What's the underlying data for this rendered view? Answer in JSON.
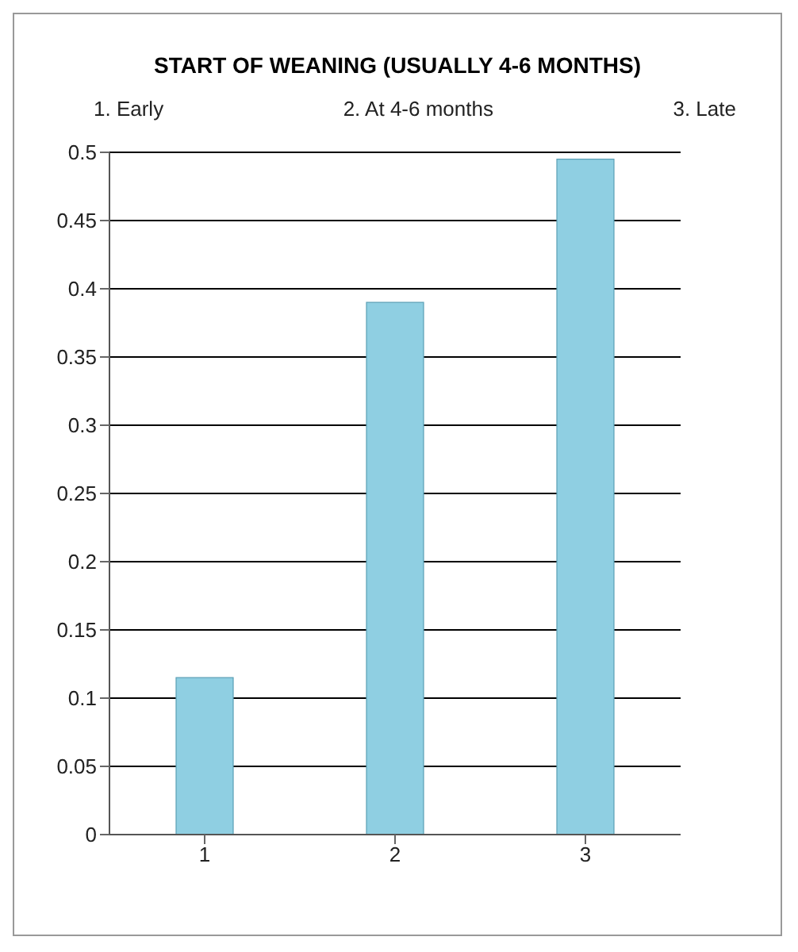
{
  "chart_data": {
    "type": "bar",
    "title": "START OF WEANING (USUALLY 4-6 MONTHS)",
    "annotations": [
      "1. Early",
      "2. At 4-6 months",
      "3. Late"
    ],
    "categories": [
      "1",
      "2",
      "3"
    ],
    "values": [
      0.115,
      0.39,
      0.495
    ],
    "color": "#8fcfe2",
    "ylim": [
      0,
      0.5
    ],
    "yticks": [
      0,
      0.05,
      0.1,
      0.15,
      0.2,
      0.25,
      0.3,
      0.35,
      0.4,
      0.45,
      0.5
    ],
    "grid": "y"
  }
}
